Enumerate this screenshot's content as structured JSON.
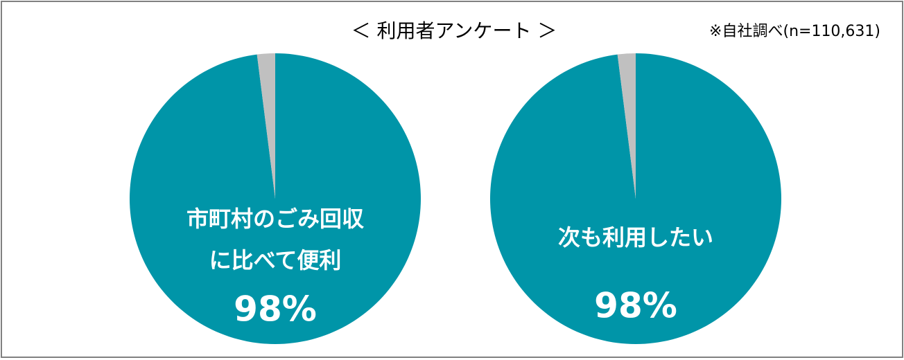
{
  "title": "＜ 利用者アンケート ＞",
  "note": "※自社調べ(n=110,631)",
  "chart_data": [
    {
      "type": "pie",
      "label": [
        "市町村のごみ回収",
        "に比べて便利"
      ],
      "values": [
        98,
        2
      ],
      "value_labels": [
        "98%",
        null
      ],
      "colors": [
        "#0095a8",
        "#c0c0c0"
      ]
    },
    {
      "type": "pie",
      "label": [
        "次も利用したい"
      ],
      "values": [
        98,
        2
      ],
      "value_labels": [
        "98%",
        null
      ],
      "colors": [
        "#0095a8",
        "#c0c0c0"
      ]
    }
  ]
}
